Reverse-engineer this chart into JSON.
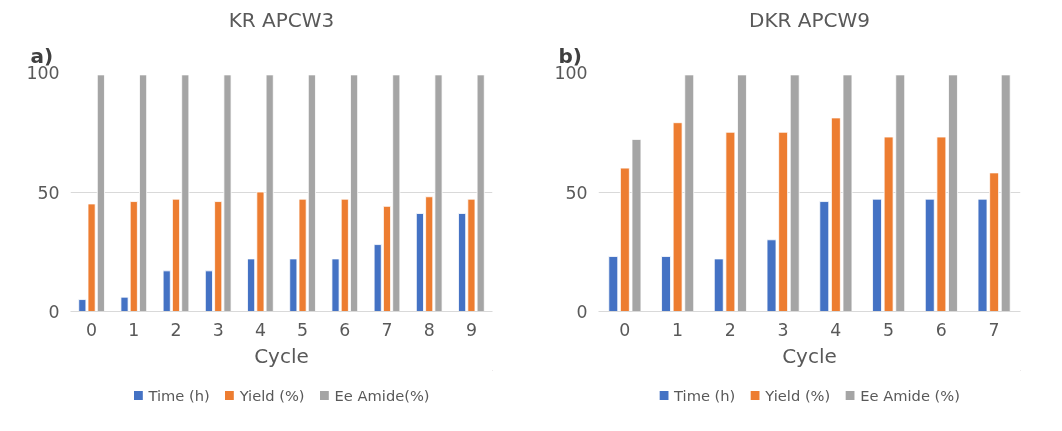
{
  "chart_data": [
    {
      "type": "bar",
      "title": "KR APCW3",
      "annotations": [
        "a)"
      ],
      "xlabel": "Cycle",
      "categories": [
        "0",
        "1",
        "2",
        "3",
        "4",
        "5",
        "6",
        "7",
        "8",
        "9"
      ],
      "series": [
        {
          "name": "Time (h)",
          "color": "#4472c4",
          "values": [
            5,
            6,
            17,
            17,
            22,
            22,
            22,
            28,
            41,
            41
          ]
        },
        {
          "name": "Yield (%)",
          "color": "#ed7d31",
          "values": [
            45,
            46,
            47,
            46,
            50,
            47,
            47,
            44,
            48,
            47
          ]
        },
        {
          "name": "Ee Amide(%)",
          "color": "#a5a5a5",
          "values": [
            99,
            99,
            99,
            99,
            99,
            99,
            99,
            99,
            99,
            99
          ]
        }
      ],
      "ylim": [
        0,
        100
      ],
      "yticks": [
        0,
        50,
        100
      ],
      "grid": "y",
      "legend": "bottom"
    },
    {
      "type": "bar",
      "title": "DKR APCW9",
      "annotations": [
        "b)"
      ],
      "xlabel": "Cycle",
      "categories": [
        "0",
        "1",
        "2",
        "3",
        "4",
        "5",
        "6",
        "7"
      ],
      "series": [
        {
          "name": "Time (h)",
          "color": "#4472c4",
          "values": [
            23,
            23,
            22,
            30,
            46,
            47,
            47,
            47
          ]
        },
        {
          "name": "Yield (%)",
          "color": "#ed7d31",
          "values": [
            60,
            79,
            75,
            75,
            81,
            73,
            73,
            58
          ]
        },
        {
          "name": "Ee Amide (%)",
          "color": "#a5a5a5",
          "values": [
            72,
            99,
            99,
            99,
            99,
            99,
            99,
            99
          ]
        }
      ],
      "ylim": [
        0,
        100
      ],
      "yticks": [
        0,
        50,
        100
      ],
      "grid": "y",
      "legend": "bottom"
    }
  ]
}
